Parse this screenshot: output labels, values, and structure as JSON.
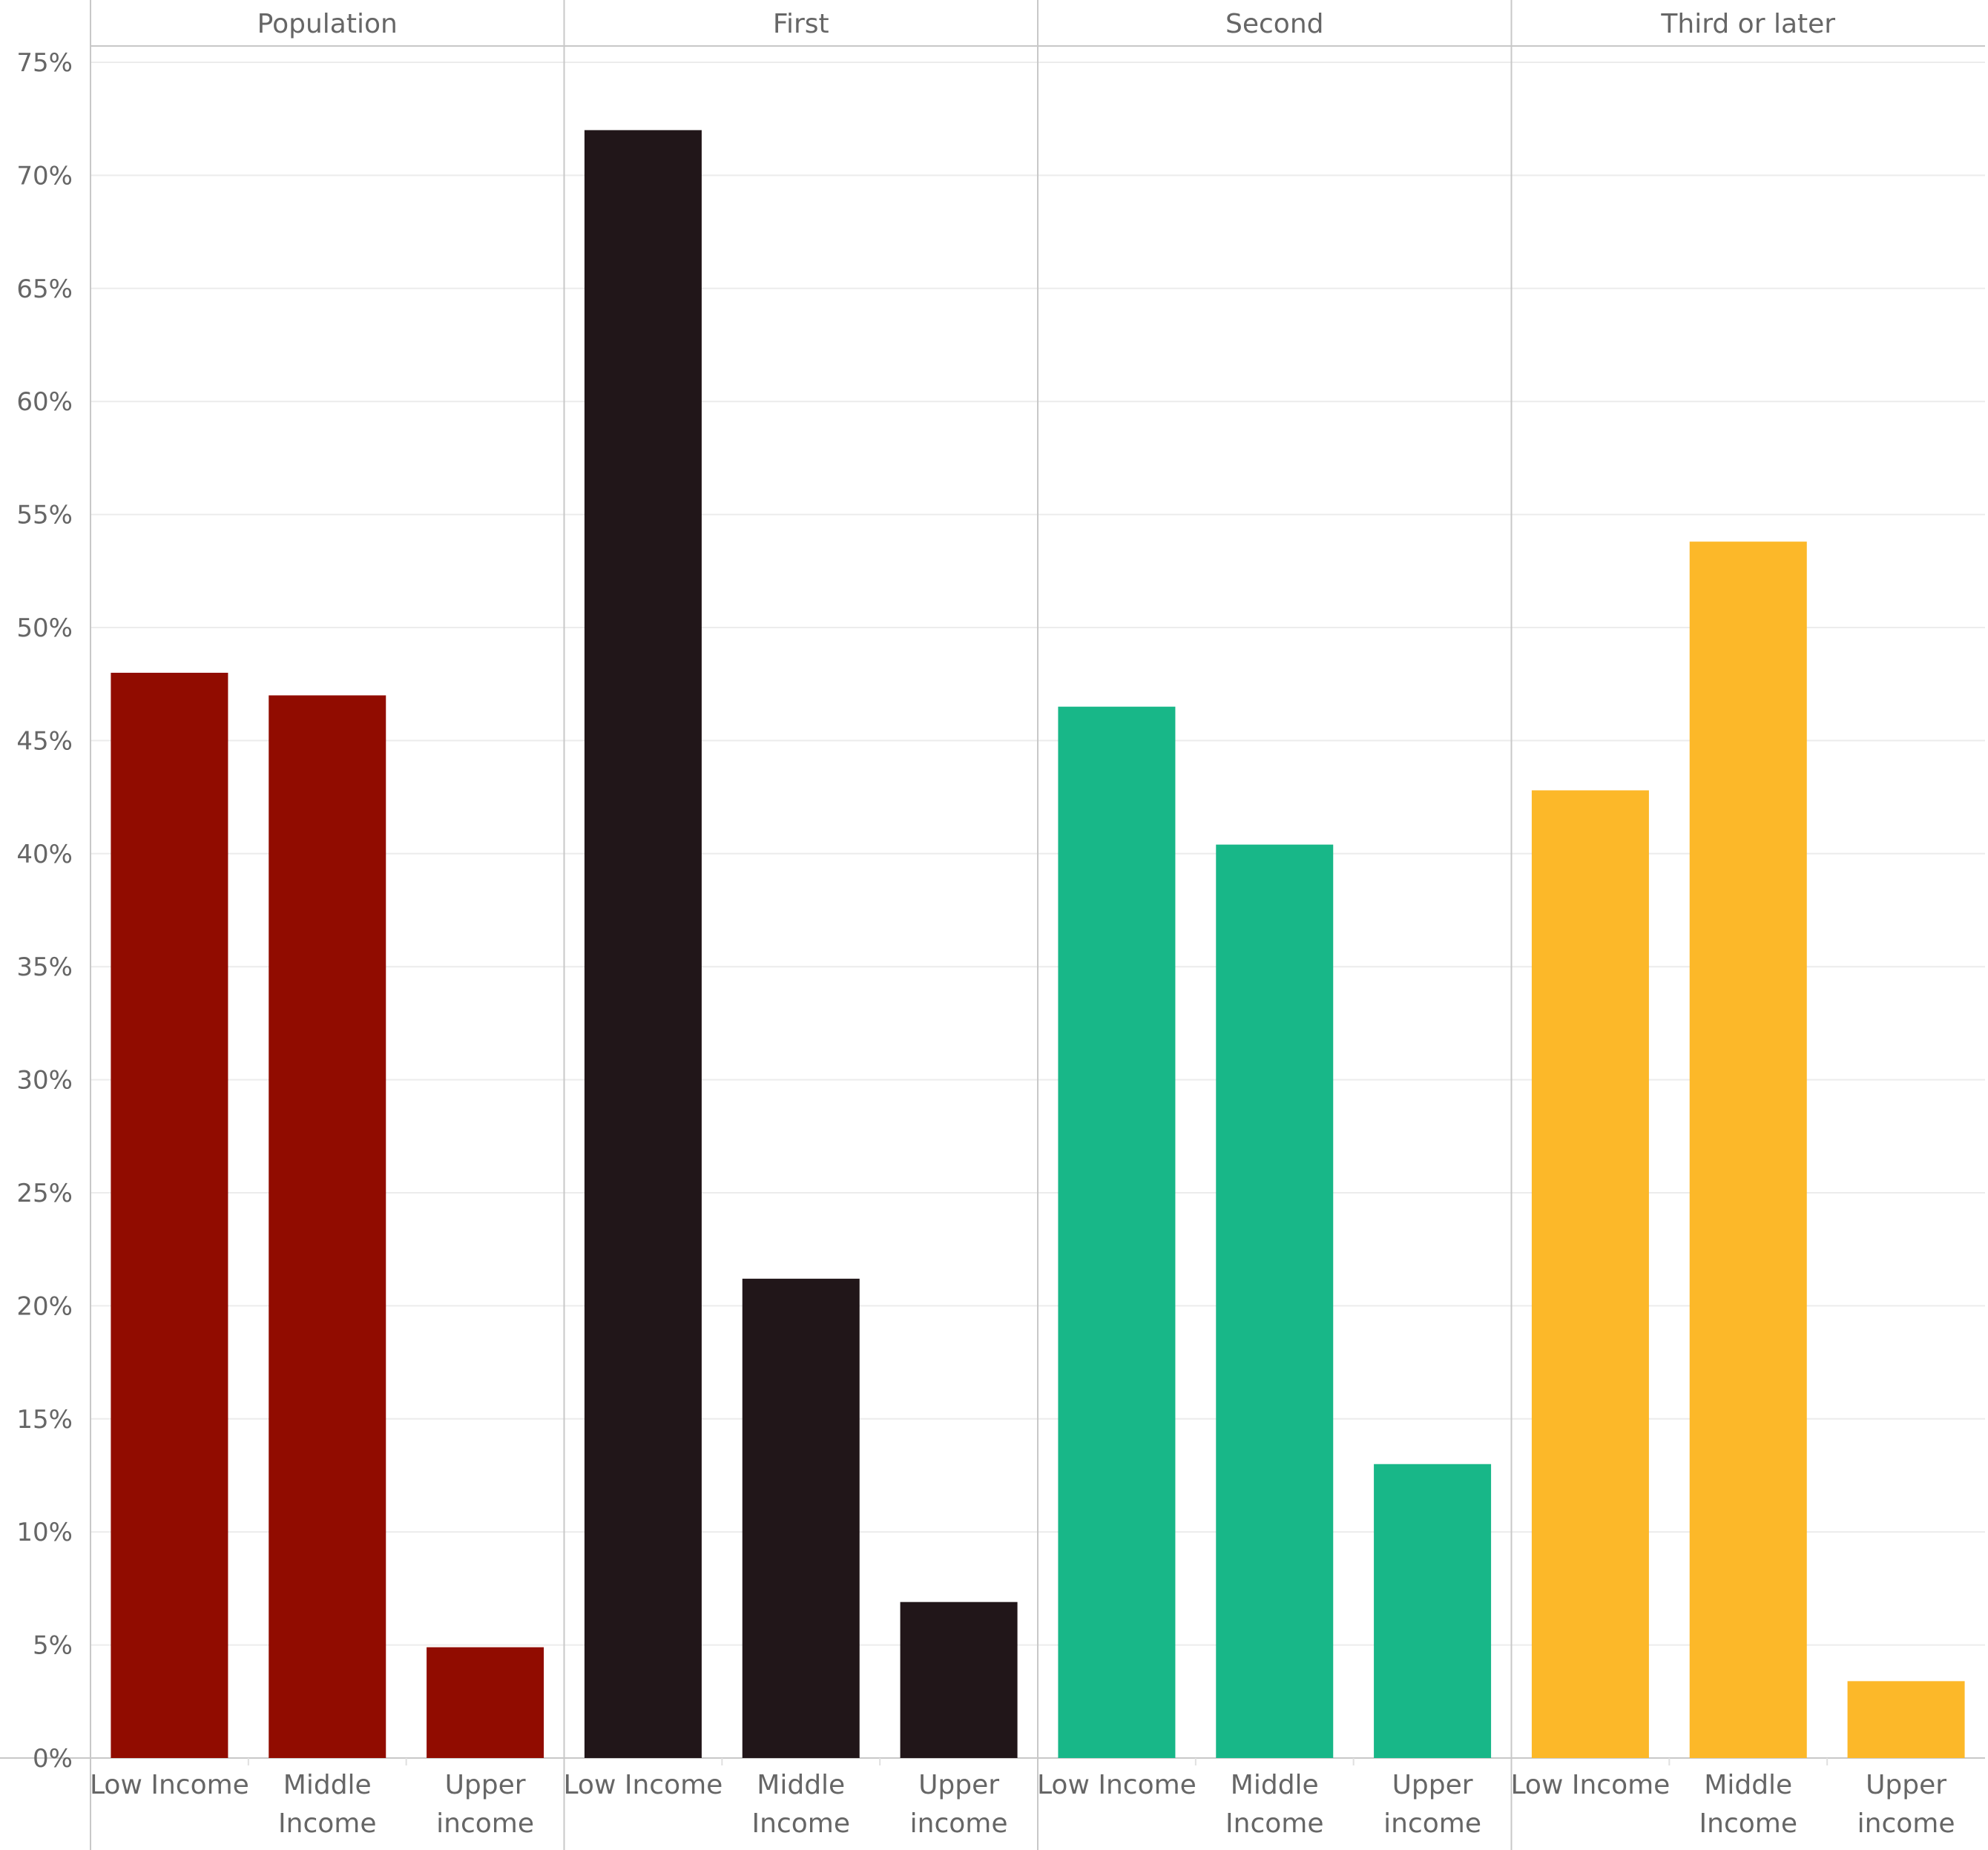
{
  "chart_data": {
    "type": "bar",
    "panels": [
      {
        "name": "Population",
        "color": "#910c00",
        "values": [
          48.0,
          47.0,
          4.9
        ]
      },
      {
        "name": "First",
        "color": "#211619",
        "values": [
          72.0,
          21.2,
          6.9
        ]
      },
      {
        "name": "Second",
        "color": "#18b788",
        "values": [
          46.5,
          40.4,
          13.0
        ]
      },
      {
        "name": "Third or later",
        "color": "#fcb829",
        "values": [
          42.8,
          53.8,
          3.4
        ]
      }
    ],
    "categories": [
      [
        "Low Income"
      ],
      [
        "Middle",
        "Income"
      ],
      [
        "Upper",
        "income"
      ]
    ],
    "y_ticks": [
      "0%",
      "5%",
      "10%",
      "15%",
      "20%",
      "25%",
      "30%",
      "35%",
      "40%",
      "45%",
      "50%",
      "55%",
      "60%",
      "65%",
      "70%",
      "75%"
    ],
    "ylim": [
      0,
      75
    ],
    "y_unit": "%",
    "title": "",
    "xlabel": "",
    "ylabel": "",
    "grid": true,
    "legend": "none"
  }
}
